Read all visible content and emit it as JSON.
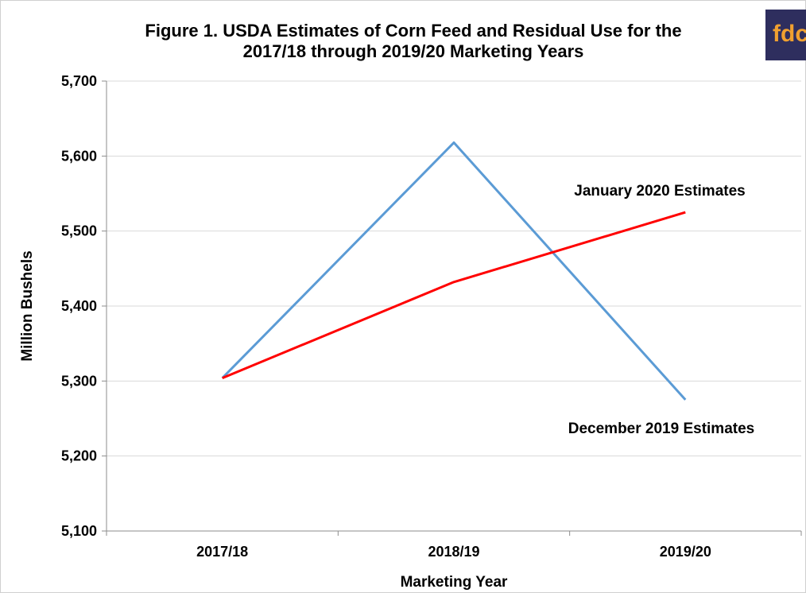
{
  "logo": {
    "text": "fdc",
    "background": "#2e2e5e",
    "color": "#f0a030"
  },
  "chart_data": {
    "type": "line",
    "title": [
      "Figure 1. USDA Estimates of Corn Feed and Residual Use for the",
      "2017/18 through 2019/20 Marketing Years"
    ],
    "xlabel": "Marketing Year",
    "ylabel": "Million Bushels",
    "categories": [
      "2017/18",
      "2018/19",
      "2019/20"
    ],
    "ylim": [
      5100,
      5700
    ],
    "yticks": [
      5100,
      5200,
      5300,
      5400,
      5500,
      5600,
      5700
    ],
    "ytick_labels": [
      "5,100",
      "5,200",
      "5,300",
      "5,400",
      "5,500",
      "5,600",
      "5,700"
    ],
    "grid": true,
    "series": [
      {
        "name": "December 2019 Estimates",
        "values": [
          5304,
          5618,
          5275
        ],
        "color": "#5b9bd5"
      },
      {
        "name": "January 2020 Estimates",
        "values": [
          5304,
          5432,
          5525
        ],
        "color": "#ff0000"
      }
    ]
  }
}
